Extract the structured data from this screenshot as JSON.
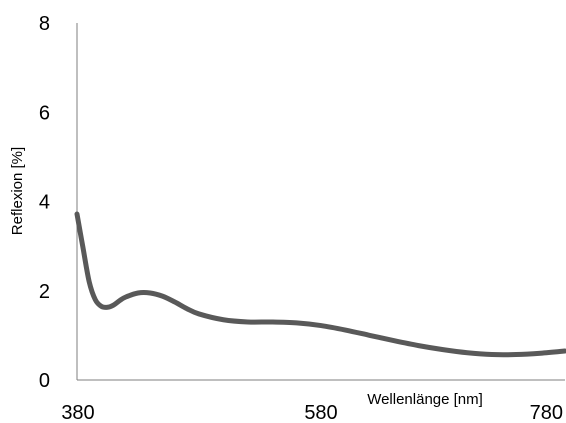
{
  "chart_data": {
    "type": "line",
    "title": "",
    "xlabel": "Wellenlänge [nm]",
    "ylabel": "Reflexion [%]",
    "xlim": [
      380,
      780
    ],
    "ylim": [
      0,
      8
    ],
    "x_ticks": [
      "380",
      "580",
      "780"
    ],
    "y_ticks": [
      "0",
      "2",
      "4",
      "6",
      "8"
    ],
    "grid": false,
    "legend": "none",
    "line_color": "#595959",
    "axis_color": "#7f7f7f",
    "series": [
      {
        "x": [
          380,
          385,
          390,
          395,
          400,
          405,
          410,
          415,
          420,
          430,
          440,
          450,
          460,
          470,
          480,
          500,
          520,
          540,
          560,
          580,
          600,
          620,
          640,
          660,
          680,
          700,
          720,
          740,
          760,
          780
        ],
        "values": [
          3.72,
          2.95,
          2.2,
          1.8,
          1.65,
          1.63,
          1.68,
          1.78,
          1.86,
          1.95,
          1.95,
          1.88,
          1.75,
          1.6,
          1.48,
          1.35,
          1.3,
          1.3,
          1.28,
          1.22,
          1.12,
          1.0,
          0.88,
          0.77,
          0.68,
          0.61,
          0.57,
          0.57,
          0.6,
          0.65
        ]
      }
    ]
  }
}
